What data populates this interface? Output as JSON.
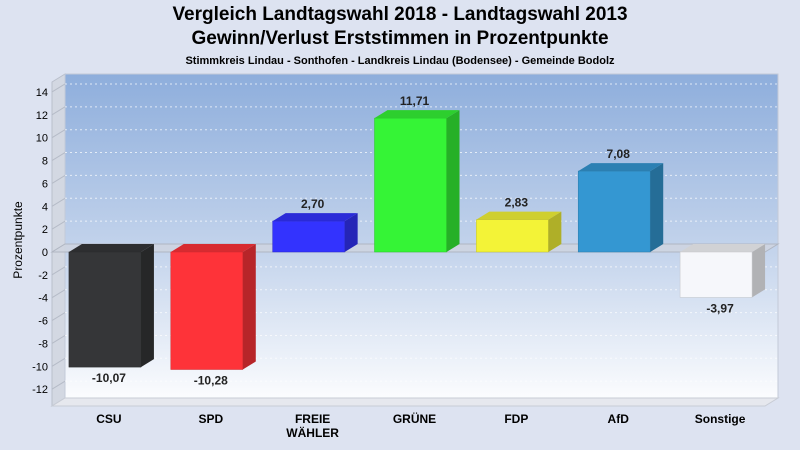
{
  "header": {
    "title": "Vergleich Landtagswahl 2018 - Landtagswahl 2013",
    "subtitle": "Gewinn/Verlust Erststimmen in Prozentpunkte",
    "region": "Stimmkreis Lindau - Sonthofen - Landkreis Lindau (Bodensee) - Gemeinde Bodolz"
  },
  "chart_data": {
    "type": "bar",
    "title": "Vergleich Landtagswahl 2018 - Landtagswahl 2013",
    "subtitle": "Gewinn/Verlust Erststimmen in Prozentpunkte",
    "xlabel": "",
    "ylabel": "Prozentpunkte",
    "ylim": [
      -13,
      15
    ],
    "yticks": [
      14,
      12,
      10,
      8,
      6,
      4,
      2,
      0,
      -2,
      -4,
      -6,
      -8,
      -10,
      -12
    ],
    "grid": true,
    "categories": [
      "CSU",
      "SPD",
      "FREIE WÄHLER",
      "GRÜNE",
      "FDP",
      "AfD",
      "Sonstige"
    ],
    "category_lines": [
      [
        "CSU"
      ],
      [
        "SPD"
      ],
      [
        "FREIE",
        "WÄHLER"
      ],
      [
        "GRÜNE"
      ],
      [
        "FDP"
      ],
      [
        "AfD"
      ],
      [
        "Sonstige"
      ]
    ],
    "values": [
      -10.07,
      -10.28,
      2.7,
      11.71,
      2.83,
      7.08,
      -3.97
    ],
    "value_labels": [
      "-10,07",
      "-10,28",
      "2,70",
      "11,71",
      "2,83",
      "7,08",
      "-3,97"
    ],
    "colors": [
      "#353638",
      "#fe3339",
      "#3333fe",
      "#35f436",
      "#f3f337",
      "#3497d2",
      "#f6f7fb"
    ]
  }
}
